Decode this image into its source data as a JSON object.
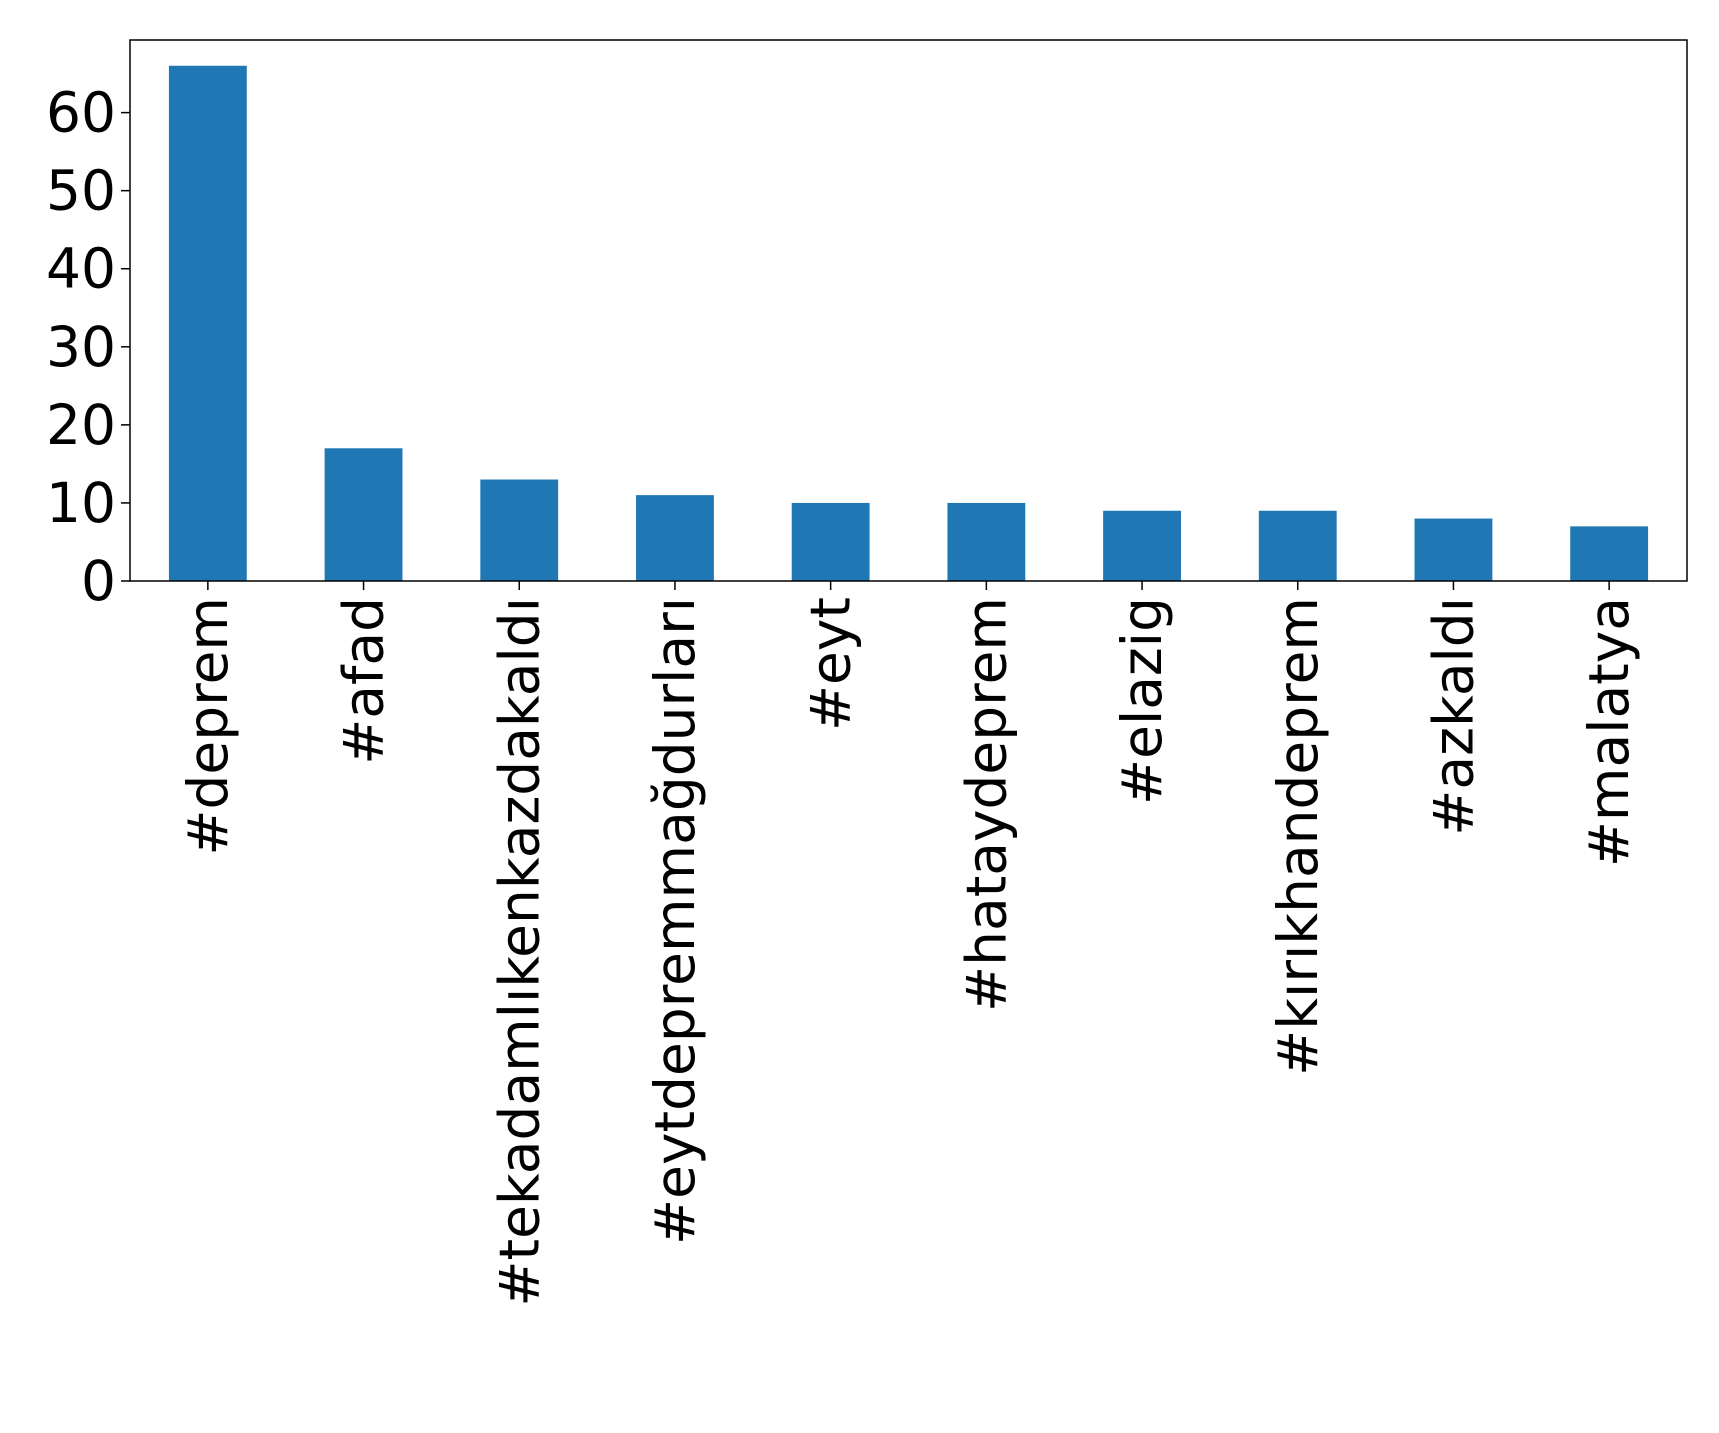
{
  "chart_data": {
    "type": "bar",
    "categories": [
      "#deprem",
      "#afad",
      "#tekadamlıkenkazdakaldı",
      "#eytdepremmağdurları",
      "#eyt",
      "#hataydeprem",
      "#elazig",
      "#kırıkhandeprem",
      "#azkaldı",
      "#malatya"
    ],
    "values": [
      66,
      17,
      13,
      11,
      10,
      10,
      9,
      9,
      8,
      7
    ],
    "color": "#1f77b4",
    "ylim": [
      0,
      69.3
    ],
    "yticks": [
      0,
      10,
      20,
      30,
      40,
      50,
      60
    ],
    "grid": false
  }
}
